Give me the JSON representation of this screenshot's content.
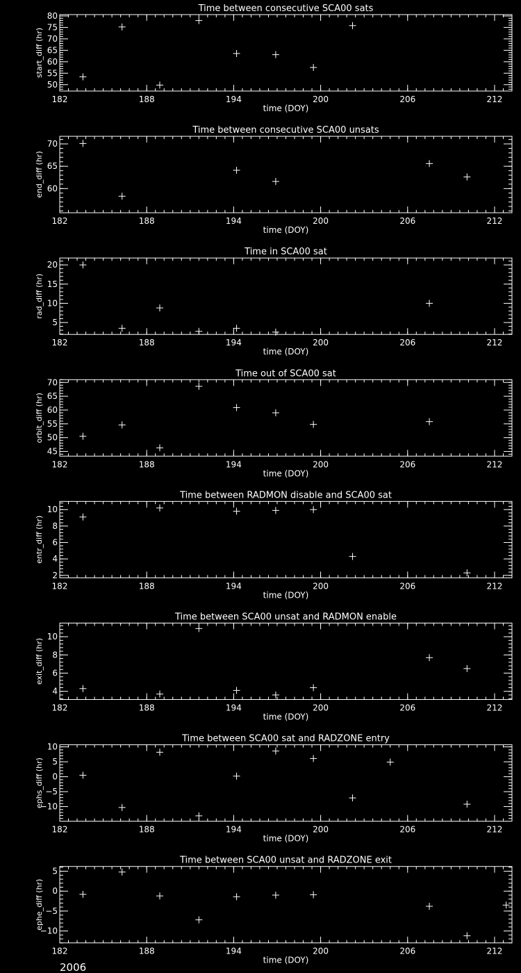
{
  "year_label": "2006",
  "colors": {
    "background": "#000000",
    "foreground": "#ffffff"
  },
  "chart_data": [
    {
      "type": "scatter",
      "marker": "plus",
      "title": "Time between consecutive SCA00 sats",
      "xlabel": "time (DOY)",
      "ylabel": "start_diff (hr)",
      "xlim": [
        182,
        213.2
      ],
      "ylim": [
        47.2,
        80.6
      ],
      "xticks": [
        182,
        188,
        194,
        200,
        206,
        212
      ],
      "yticks": [
        50,
        55,
        60,
        65,
        70,
        75,
        80
      ],
      "x_minor": 0.6,
      "y_minor": 1,
      "x": [
        183.6,
        186.3,
        188.9,
        191.6,
        194.2,
        196.9,
        199.5,
        202.2
      ],
      "y": [
        53.4,
        75.2,
        49.8,
        78.0,
        63.6,
        63.1,
        57.5,
        75.8
      ]
    },
    {
      "type": "scatter",
      "marker": "plus",
      "title": "Time between consecutive SCA00 unsats",
      "xlabel": "time (DOY)",
      "ylabel": "end_diff (hr)",
      "xlim": [
        182,
        213.2
      ],
      "ylim": [
        54.6,
        71.7
      ],
      "xticks": [
        182,
        188,
        194,
        200,
        206,
        212
      ],
      "yticks": [
        60,
        65,
        70
      ],
      "x_minor": 0.6,
      "y_minor": 1,
      "x": [
        183.6,
        186.3,
        194.2,
        196.9,
        207.5,
        210.1
      ],
      "y": [
        70.1,
        58.3,
        64.1,
        61.6,
        65.6,
        62.6
      ]
    },
    {
      "type": "scatter",
      "marker": "plus",
      "title": "Time in SCA00 sat",
      "xlabel": "time (DOY)",
      "ylabel": "rad_diff (hr)",
      "xlim": [
        182,
        213.2
      ],
      "ylim": [
        1.9,
        21.8
      ],
      "xticks": [
        182,
        188,
        194,
        200,
        206,
        212
      ],
      "yticks": [
        5,
        10,
        15,
        20
      ],
      "x_minor": 0.6,
      "y_minor": 1,
      "x": [
        183.6,
        186.3,
        188.9,
        191.6,
        194.2,
        196.9,
        207.5
      ],
      "y": [
        20.0,
        3.5,
        8.8,
        2.7,
        3.5,
        2.5,
        10.0
      ]
    },
    {
      "type": "scatter",
      "marker": "plus",
      "title": "Time out of SCA00 sat",
      "xlabel": "time (DOY)",
      "ylabel": "orbit_diff (hr)",
      "xlim": [
        182,
        213.2
      ],
      "ylim": [
        43.3,
        71.0
      ],
      "xticks": [
        182,
        188,
        194,
        200,
        206,
        212
      ],
      "yticks": [
        45,
        50,
        55,
        60,
        65,
        70
      ],
      "x_minor": 0.6,
      "y_minor": 1,
      "x": [
        183.6,
        186.3,
        188.9,
        191.6,
        194.2,
        196.9,
        199.5,
        207.5
      ],
      "y": [
        50.5,
        54.6,
        46.3,
        68.6,
        60.9,
        59.0,
        54.8,
        55.8
      ]
    },
    {
      "type": "scatter",
      "marker": "plus",
      "title": "Time between RADMON disable and SCA00 sat",
      "xlabel": "time (DOY)",
      "ylabel": "entr_diff (hr)",
      "xlim": [
        182,
        213.2
      ],
      "ylim": [
        1.7,
        11.0
      ],
      "xticks": [
        182,
        188,
        194,
        200,
        206,
        212
      ],
      "yticks": [
        2,
        4,
        6,
        8,
        10
      ],
      "x_minor": 0.6,
      "y_minor": 0.4,
      "x": [
        183.6,
        188.9,
        194.2,
        196.9,
        199.5,
        202.2,
        210.1
      ],
      "y": [
        9.1,
        10.2,
        9.8,
        9.9,
        10.0,
        4.3,
        2.3
      ]
    },
    {
      "type": "scatter",
      "marker": "plus",
      "title": "Time between SCA00 unsat and RADMON enable",
      "xlabel": "time (DOY)",
      "ylabel": "exit_diff (hr)",
      "xlim": [
        182,
        213.2
      ],
      "ylim": [
        3.1,
        11.5
      ],
      "xticks": [
        182,
        188,
        194,
        200,
        206,
        212
      ],
      "yticks": [
        4,
        6,
        8,
        10
      ],
      "x_minor": 0.6,
      "y_minor": 0.4,
      "x": [
        183.6,
        188.9,
        191.6,
        194.2,
        196.9,
        199.5,
        207.5,
        210.1
      ],
      "y": [
        4.3,
        3.7,
        10.9,
        4.1,
        3.6,
        4.4,
        7.7,
        6.5
      ]
    },
    {
      "type": "scatter",
      "marker": "plus",
      "title": "Time between SCA00 sat and RADZONE entry",
      "xlabel": "time (DOY)",
      "ylabel": "ephs_diff (hr)",
      "xlim": [
        182,
        213.2
      ],
      "ylim": [
        -14.9,
        10.7
      ],
      "xticks": [
        182,
        188,
        194,
        200,
        206,
        212
      ],
      "yticks": [
        -10,
        -5,
        0,
        5,
        10
      ],
      "x_minor": 0.6,
      "y_minor": 1,
      "x": [
        183.6,
        186.3,
        188.9,
        191.6,
        194.2,
        196.9,
        199.5,
        202.2,
        204.8,
        210.1
      ],
      "y": [
        0.5,
        -10.3,
        8.2,
        -13.1,
        0.2,
        8.6,
        6.1,
        -7.1,
        4.9,
        -9.2
      ]
    },
    {
      "type": "scatter",
      "marker": "plus",
      "title": "Time between SCA00 unsat and RADZONE exit",
      "xlabel": "time (DOY)",
      "ylabel": "ephe_diff (hr)",
      "xlim": [
        182,
        213.2
      ],
      "ylim": [
        -13.0,
        6.2
      ],
      "xticks": [
        182,
        188,
        194,
        200,
        206,
        212
      ],
      "yticks": [
        -10,
        -5,
        0,
        5
      ],
      "x_minor": 0.6,
      "y_minor": 1,
      "x": [
        183.6,
        186.3,
        188.9,
        191.6,
        194.2,
        196.9,
        199.5,
        207.5,
        210.1,
        212.8
      ],
      "y": [
        -0.8,
        4.8,
        -1.2,
        -7.2,
        -1.4,
        -1.0,
        -0.9,
        -3.8,
        -11.2,
        -3.5
      ]
    }
  ]
}
